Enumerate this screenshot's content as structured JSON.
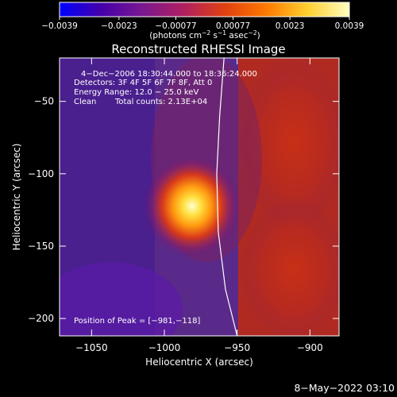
{
  "chart_data": {
    "type": "heatmap",
    "title": "Reconstructed RHESSI Image",
    "xlabel": "Heliocentric X (arcsec)",
    "ylabel": "Heliocentric Y (arcsec)",
    "xlim": [
      -1072,
      -880
    ],
    "ylim": [
      -212,
      -20
    ],
    "xticks": [
      -1050,
      -1000,
      -950,
      -900
    ],
    "xtick_labels": [
      "−1050",
      "−1000",
      "−950",
      "−900"
    ],
    "yticks": [
      -50,
      -100,
      -150,
      -200
    ],
    "ytick_labels": [
      "−50",
      "−100",
      "−150",
      "−200"
    ],
    "colorbar": {
      "min": -0.0039,
      "max": 0.0039,
      "ticks": [
        -0.0039,
        -0.0023,
        -0.00077,
        0.00077,
        0.0023,
        0.0039
      ],
      "tick_labels": [
        "−0.0039",
        "−0.0023",
        "−0.00077",
        "0.00077",
        "0.0023",
        "0.0039"
      ],
      "unit_main": "(photons cm",
      "unit_sup1": "−2",
      "unit_mid": " s",
      "unit_sup2": "−1",
      "unit_mid2": " asec",
      "unit_sup3": "−2",
      "unit_end": ")",
      "colormap": [
        "#0000ff",
        "#4400aa",
        "#7a1890",
        "#b02060",
        "#e04010",
        "#ff7a00",
        "#ffd030",
        "#ffffc0"
      ]
    },
    "annotations": {
      "time": "4−Dec−2006 18:30:44.000 to 18:36:24.000",
      "detectors": "Detectors: 3F 4F 5F 6F 7F 8F, Att 0",
      "energy": "Energy Range: 12.0 − 25.0 keV",
      "method": "Clean",
      "counts": "Total counts: 2.13E+04",
      "peak": "Position of Peak = [−981,−118]"
    },
    "peak": {
      "x": -981,
      "y": -118
    },
    "limb_curve": [
      [
        -959,
        -20
      ],
      [
        -962,
        -60
      ],
      [
        -964,
        -100
      ],
      [
        -963,
        -140
      ],
      [
        -958,
        -180
      ],
      [
        -950,
        -212
      ]
    ]
  },
  "footer": {
    "date": "8−May−2022 03:10"
  }
}
